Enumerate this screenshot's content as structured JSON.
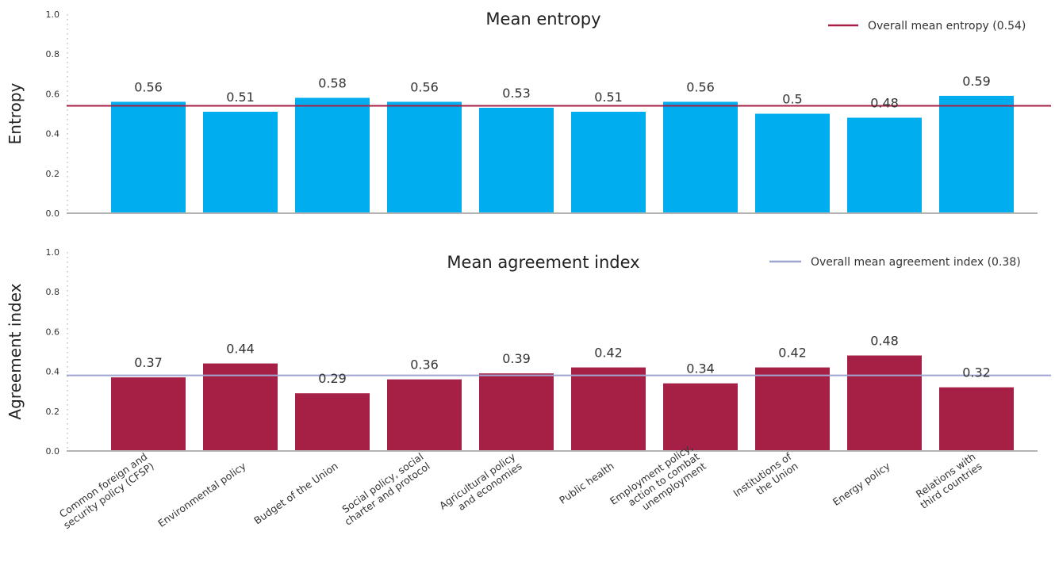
{
  "chart_data": [
    {
      "type": "bar",
      "title": "Mean entropy",
      "ylabel": "Entropy",
      "ylim": [
        0,
        1.0
      ],
      "yticks": [
        "0.0",
        "0.2",
        "0.4",
        "0.6",
        "0.8",
        "1.0"
      ],
      "categories": [
        "Common foreign and security policy (CFSP)",
        "Environmental policy",
        "Budget of the Union",
        "Social policy, social charter and protocol",
        "Agricultural policy and economies",
        "Public health",
        "Employment policy, action to combat unemployment",
        "Institutions of the Union",
        "Energy policy",
        "Relations with third countries"
      ],
      "values": [
        0.56,
        0.51,
        0.58,
        0.56,
        0.53,
        0.51,
        0.56,
        0.5,
        0.48,
        0.59
      ],
      "value_labels": [
        "0.56",
        "0.51",
        "0.58",
        "0.56",
        "0.53",
        "0.51",
        "0.56",
        "0.5",
        "0.48",
        "0.59"
      ],
      "bar_color": "#00adee",
      "reference_line": {
        "name": "Overall mean entropy (0.54)",
        "value": 0.54,
        "color": "#a62045"
      },
      "legend": "top-right",
      "grid": false
    },
    {
      "type": "bar",
      "title": "Mean agreement index",
      "ylabel": "Agreement index",
      "ylim": [
        0,
        1.0
      ],
      "yticks": [
        "0.0",
        "0.2",
        "0.4",
        "0.6",
        "0.8",
        "1.0"
      ],
      "categories": [
        "Common foreign and security policy (CFSP)",
        "Environmental policy",
        "Budget of the Union",
        "Social policy, social charter and protocol",
        "Agricultural policy and economies",
        "Public health",
        "Employment policy, action to combat unemployment",
        "Institutions of the Union",
        "Energy policy",
        "Relations with third countries"
      ],
      "values": [
        0.37,
        0.44,
        0.29,
        0.36,
        0.39,
        0.42,
        0.34,
        0.42,
        0.48,
        0.32
      ],
      "value_labels": [
        "0.37",
        "0.44",
        "0.29",
        "0.36",
        "0.39",
        "0.42",
        "0.34",
        "0.42",
        "0.48",
        "0.32"
      ],
      "bar_color": "#a62045",
      "reference_line": {
        "name": "Overall mean agreement index (0.38)",
        "value": 0.38,
        "color": "#9fa5d1"
      },
      "legend": "top-right",
      "grid": false
    }
  ],
  "x_category_lines": [
    [
      "Common foreign and",
      "security policy (CFSP)"
    ],
    [
      "Environmental policy"
    ],
    [
      "Budget of the Union"
    ],
    [
      "Social policy, social",
      "charter and protocol"
    ],
    [
      "Agricultural policy",
      "and economies"
    ],
    [
      "Public health"
    ],
    [
      "Employment policy,",
      "action to combat",
      "unemployment"
    ],
    [
      "Institutions of",
      "the Union"
    ],
    [
      "Energy policy"
    ],
    [
      "Relations with",
      "third countries"
    ]
  ],
  "colors": {
    "axis": "#b3b3b3",
    "axis_dots": "#bbbbbb",
    "text": "#333333"
  }
}
